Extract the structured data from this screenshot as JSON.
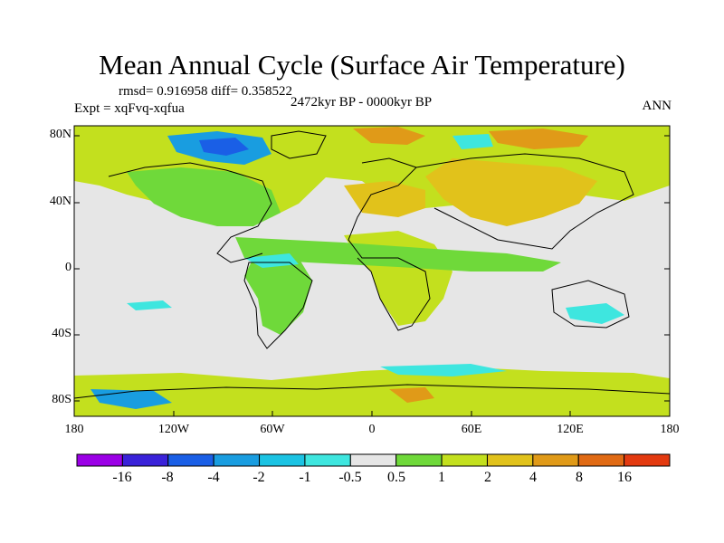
{
  "title": "Mean Annual Cycle (Surface Air Temperature)",
  "stats": "rmsd= 0.916958 diff= 0.358522",
  "experiment": "Expt = xqFvq-xqfua",
  "period": "2472kyr BP - 0000kyr BP",
  "season": "ANN",
  "lat_labels": [
    "80N",
    "40N",
    "0",
    "40S",
    "80S"
  ],
  "lon_labels": [
    "180",
    "120W",
    "60W",
    "0",
    "60E",
    "120E",
    "180"
  ],
  "colorbar": {
    "colors": [
      "#9b00e6",
      "#3a22d9",
      "#1a5fe6",
      "#199de0",
      "#1bc3e3",
      "#3ee6df",
      "#e6e6e6",
      "#6fd93a",
      "#c3e01e",
      "#e1c21b",
      "#e09a18",
      "#e06a14",
      "#e33a10"
    ],
    "labels": [
      "-16",
      "-8",
      "-4",
      "-2",
      "-1",
      "-0.5",
      "0.5",
      "1",
      "2",
      "4",
      "8",
      "16"
    ]
  },
  "colors": {
    "background": "#e6e6e6",
    "warm_light": "#c3e01e",
    "warm": "#6fd93a",
    "warm_med": "#e1c21b",
    "warm_strong": "#e09a18",
    "cool": "#3ee6df",
    "cool_med": "#199de0",
    "cool_strong": "#1a5fe6",
    "coast": "#000000"
  }
}
